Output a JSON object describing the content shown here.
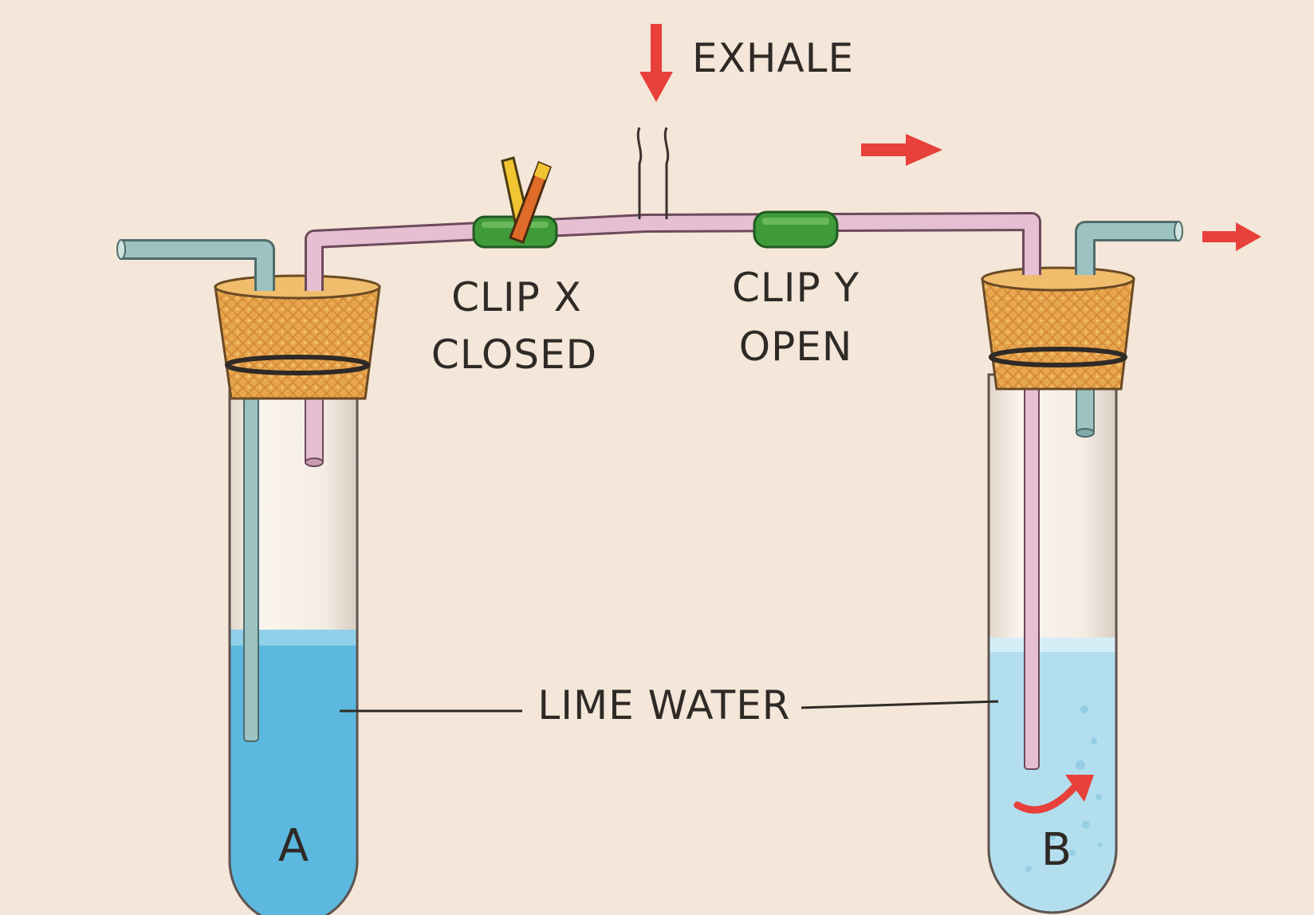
{
  "labels": {
    "exhale": "EXHALE",
    "clip_x_line1": "CLIP X",
    "clip_x_line2": "CLOSED",
    "clip_y_line1": "CLIP Y",
    "clip_y_line2": "OPEN",
    "lime_water": "LIME WATER",
    "tube_a": "A",
    "tube_b": "B"
  },
  "colors": {
    "background": "#f4e6d8",
    "arrow": "#e8403a",
    "lime_water_a": "#5cb8de",
    "lime_water_b": "#b2deee",
    "cork": "#e6a14a",
    "clip": "#3f9a3a",
    "pink_tube": "#e7bfd2",
    "teal_tube": "#9cc3c1"
  },
  "state": {
    "clip_x": "closed",
    "clip_y": "open"
  }
}
